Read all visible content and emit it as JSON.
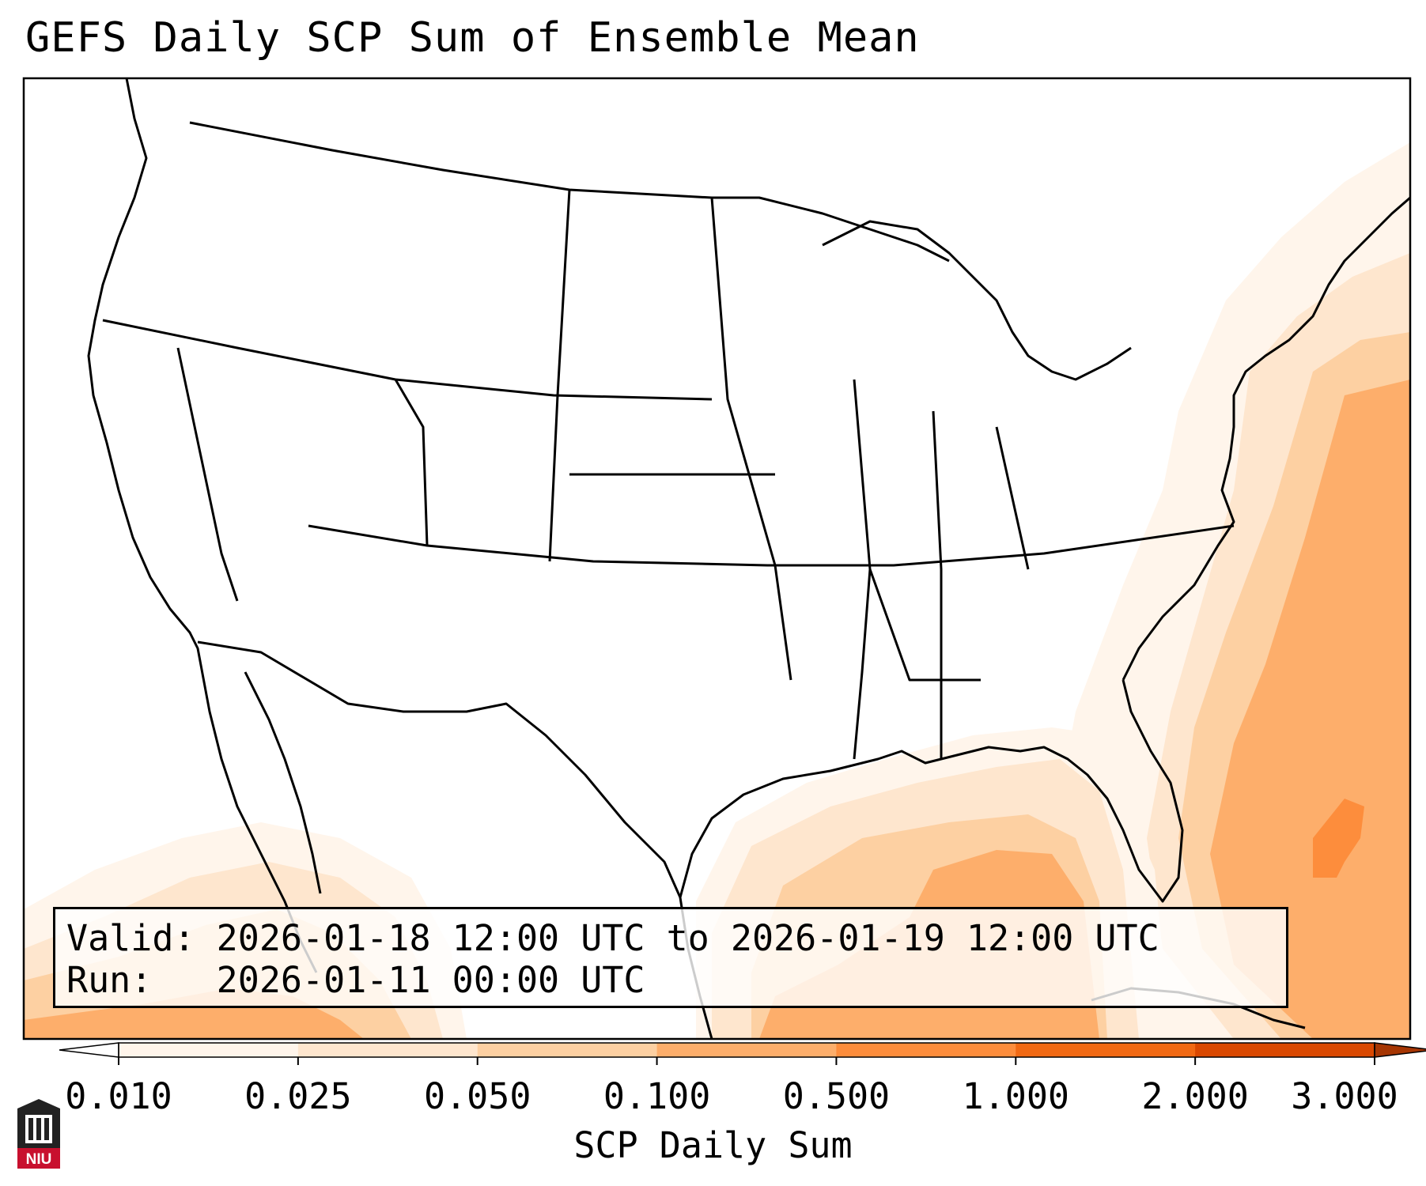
{
  "title": "GEFS Daily SCP Sum of Ensemble Mean",
  "info_box": {
    "valid": "Valid: 2026-01-18 12:00 UTC to 2026-01-19 12:00 UTC",
    "run": "Run:   2026-01-11 00:00 UTC"
  },
  "colorbar": {
    "label": "SCP Daily Sum",
    "ticks": [
      "0.010",
      "0.025",
      "0.050",
      "0.100",
      "0.500",
      "1.000",
      "2.000",
      "3.000"
    ],
    "colors": [
      "#fff5eb",
      "#fee6ce",
      "#fdd0a2",
      "#fdae6b",
      "#fd8d3c",
      "#f16913",
      "#d94801"
    ],
    "under_color": "#ffffff",
    "over_color": "#a63603"
  },
  "logo": {
    "text": "NIU",
    "color": "#c8102e"
  }
}
